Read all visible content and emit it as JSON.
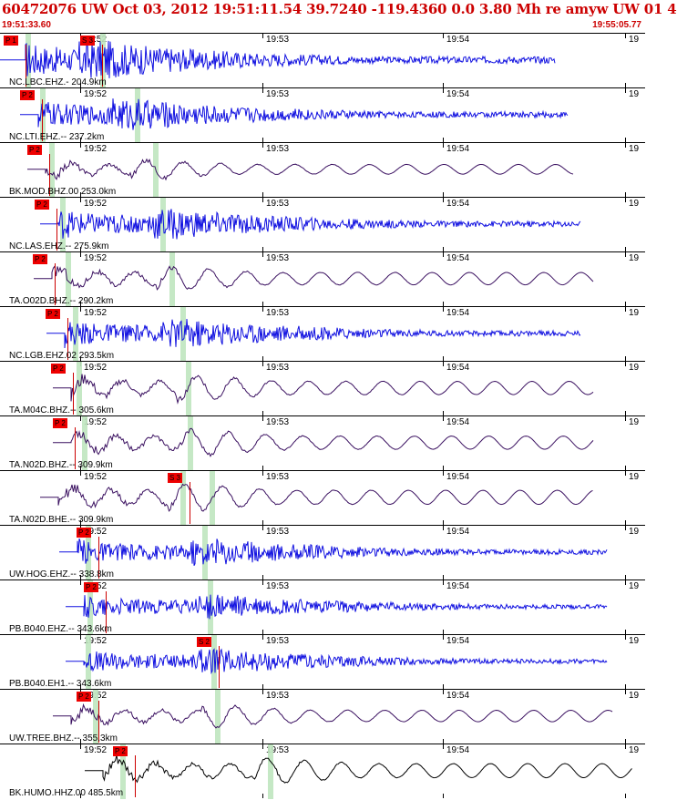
{
  "header": {
    "title": "60472076 UW Oct 03, 2012 19:51:11.54   39.7240 -119.4360  0.0 3.80 Mh re amyw UW 01    4",
    "start_time": "19:51:33.60",
    "end_time": "19:55:05.77"
  },
  "time_labels": [
    "19:52",
    "19:53",
    "19:54",
    "19"
  ],
  "traces": [
    {
      "label": "NC.LBC.EHZ.- 204.9km",
      "picks": [
        "P 1",
        "S 3"
      ],
      "color": "#1010e0",
      "amp": 0.85,
      "onset": 0.04,
      "end": 0.86,
      "s": 0.15
    },
    {
      "label": "NC.LTI.EHZ.-- 237.2km",
      "picks": [
        "P 2"
      ],
      "color": "#1010e0",
      "amp": 0.7,
      "onset": 0.06,
      "end": 0.88,
      "s": 0.2
    },
    {
      "label": "BK.MOD.BHZ.00 253.0km",
      "picks": [
        "P 2"
      ],
      "color": "#3a1060",
      "amp": 0.55,
      "onset": 0.07,
      "end": 0.89,
      "s": 0.23
    },
    {
      "label": "NC.LAS.EHZ.-- 275.9km",
      "picks": [
        "P 2"
      ],
      "color": "#1010e0",
      "amp": 0.7,
      "onset": 0.09,
      "end": 0.9,
      "s": 0.25
    },
    {
      "label": "TA.O02D.BHZ.-- 290.2km",
      "picks": [
        "P 2"
      ],
      "color": "#3a1060",
      "amp": 0.7,
      "onset": 0.08,
      "end": 0.92,
      "s": 0.27
    },
    {
      "label": "NC.LGB.EHZ.02 293.5km",
      "picks": [
        "P 2"
      ],
      "color": "#1010e0",
      "amp": 0.65,
      "onset": 0.1,
      "end": 0.9,
      "s": 0.28
    },
    {
      "label": "TA.M04C.BHZ.-- 305.6km",
      "picks": [
        "P 2"
      ],
      "color": "#3a1060",
      "amp": 0.75,
      "onset": 0.11,
      "end": 0.92,
      "s": 0.3
    },
    {
      "label": "TA.N02D.BHZ.-- 309.9km",
      "picks": [
        "P 2"
      ],
      "color": "#3a1060",
      "amp": 0.75,
      "onset": 0.11,
      "end": 0.92,
      "s": 0.31
    },
    {
      "label": "TA.N02D.BHE.-- 309.9km",
      "picks": [
        "S 3"
      ],
      "color": "#3a1060",
      "amp": 0.8,
      "onset": 0.09,
      "end": 0.92,
      "s": 0.29
    },
    {
      "label": "UW.HOG.EHZ.-- 338.8km",
      "picks": [
        "P 2"
      ],
      "color": "#1010e0",
      "amp": 0.6,
      "onset": 0.12,
      "end": 0.94,
      "s": 0.32
    },
    {
      "label": "PB.B040.EHZ.-- 343.6km",
      "picks": [
        "P 2"
      ],
      "color": "#1010e0",
      "amp": 0.55,
      "onset": 0.13,
      "end": 0.94,
      "s": 0.33
    },
    {
      "label": "PB.B040.EH1.-- 343.6km",
      "picks": [
        "S 2"
      ],
      "color": "#1010e0",
      "amp": 0.55,
      "onset": 0.13,
      "end": 0.94,
      "s": 0.33
    },
    {
      "label": "UW.TREE.BHZ.-- 355.3km",
      "picks": [
        "P 2"
      ],
      "color": "#3a1060",
      "amp": 0.65,
      "onset": 0.11,
      "end": 0.95,
      "s": 0.34
    },
    {
      "label": "BK.HUMO.HHZ.00 485.5km",
      "picks": [
        "P 2"
      ],
      "color": "#000000",
      "amp": 0.8,
      "onset": 0.16,
      "end": 0.98,
      "s": 0.42
    }
  ]
}
